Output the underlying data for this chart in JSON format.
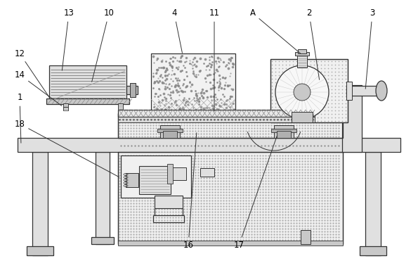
{
  "bg": "#ffffff",
  "lc": "#333333",
  "gray1": "#f0f0f0",
  "gray2": "#e0e0e0",
  "gray3": "#c8c8c8",
  "gray4": "#b0b0b0",
  "gray5": "#888888",
  "gray6": "#666666"
}
